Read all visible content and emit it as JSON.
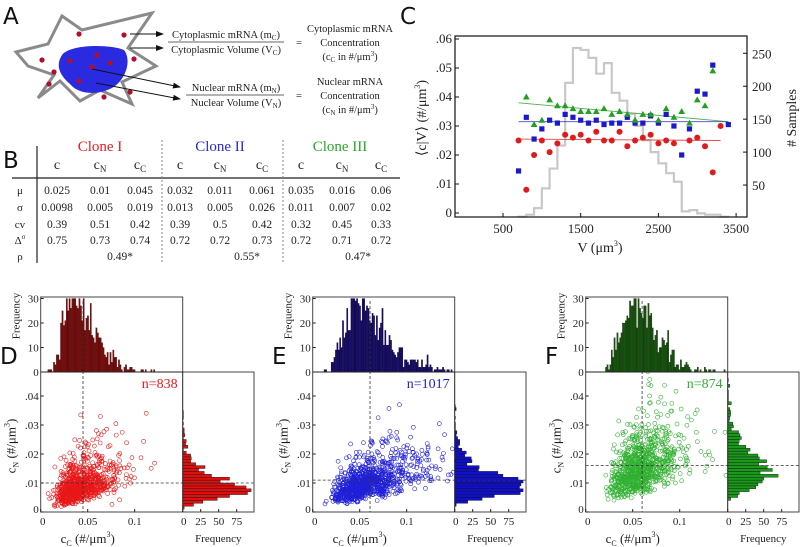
{
  "panel_labels": {
    "a": "A",
    "b": "B",
    "c": "C",
    "d": "D",
    "e": "E",
    "f": "F"
  },
  "panel_a": {
    "cyto_num": {
      "text": "Cytoplasmic mRNA (m",
      "sub": "C",
      "end": ")"
    },
    "cyto_den": {
      "text": "Cytoplasmic Volume (V",
      "sub": "C",
      "end": ")"
    },
    "cyto_eq": "=",
    "cyto_result": {
      "line1": "Cytoplasmic mRNA",
      "line2": "Concentration",
      "line3_pre": "(c",
      "line3_sub": "C",
      "line3_mid": " in #/μm",
      "line3_sup": "3",
      "line3_end": ")"
    },
    "nuc_num": {
      "text": "Nuclear mRNA (m",
      "sub": "N",
      "end": ")"
    },
    "nuc_den": {
      "text": "Nuclear Volume (V",
      "sub": "N",
      "end": ")"
    },
    "nuc_eq": "=",
    "nuc_result": {
      "line1": "Nuclear mRNA",
      "line2": "Concentration",
      "line3_pre": "(c",
      "line3_sub": "N",
      "line3_mid": " in #/μm",
      "line3_sup": "3",
      "line3_end": ")"
    },
    "colors": {
      "nucleus": "#2a2ae0",
      "mrna": "#b01030",
      "membrane": "#8a8a8a"
    }
  },
  "panel_b": {
    "clones": [
      {
        "name": "Clone I",
        "color": "#e0202a",
        "rho": "0.49*"
      },
      {
        "name": "Clone II",
        "color": "#2a2acc",
        "rho": "0.55*"
      },
      {
        "name": "Clone III",
        "color": "#2aa52a",
        "rho": "0.47*"
      }
    ],
    "columns": [
      {
        "base": "c",
        "sub": ""
      },
      {
        "base": "c",
        "sub": "N"
      },
      {
        "base": "c",
        "sub": "C"
      }
    ],
    "row_labels": [
      {
        "base": "μ",
        "sup": ""
      },
      {
        "base": "σ",
        "sup": ""
      },
      {
        "base": "cv",
        "sup": ""
      },
      {
        "base": "Δ",
        "sup": "σ"
      },
      {
        "base": "ρ",
        "sup": ""
      }
    ],
    "rows": [
      [
        "0.025",
        "0.01",
        "0.045",
        "0.032",
        "0.011",
        "0.061",
        "0.035",
        "0.016",
        "0.06"
      ],
      [
        "0.0098",
        "0.005",
        "0.019",
        "0.013",
        "0.005",
        "0.026",
        "0.011",
        "0.007",
        "0.02"
      ],
      [
        "0.39",
        "0.51",
        "0.42",
        "0.39",
        "0.5",
        "0.42",
        "0.32",
        "0.45",
        "0.33"
      ],
      [
        "0.75",
        "0.73",
        "0.74",
        "0.72",
        "0.72",
        "0.73",
        "0.72",
        "0.71",
        "0.72"
      ]
    ]
  },
  "chart_data": [
    {
      "panel": "C",
      "type": "scatter",
      "xlabel": {
        "text": "V (μm",
        "sup": "3",
        "end": ")"
      },
      "ylabel": {
        "text": "⟨c|V⟩ (#/μm",
        "sup": "3",
        "end": ")"
      },
      "ylabel_right": "# Samples",
      "xlim": [
        -120,
        3670
      ],
      "ylim": [
        0,
        0.061
      ],
      "ylim_right": [
        0,
        270
      ],
      "xticks": [
        {
          "v": 500,
          "label": "500"
        },
        {
          "v": 1500,
          "label": "1500"
        },
        {
          "v": 2500,
          "label": "2500"
        },
        {
          "v": 3500,
          "label": "3500"
        }
      ],
      "yticks": [
        {
          "v": 0,
          "label": "0"
        },
        {
          "v": 0.01,
          "label": ".01"
        },
        {
          "v": 0.02,
          "label": ".02"
        },
        {
          "v": 0.03,
          "label": ".03"
        },
        {
          "v": 0.04,
          "label": ".04"
        },
        {
          "v": 0.05,
          "label": ".05"
        },
        {
          "v": 0.06,
          "label": ".06"
        }
      ],
      "yticks_right": [
        {
          "v": 50,
          "label": "50"
        },
        {
          "v": 100,
          "label": "100"
        },
        {
          "v": 150,
          "label": "150"
        },
        {
          "v": 200,
          "label": "200"
        },
        {
          "v": 250,
          "label": "250"
        }
      ],
      "series": [
        {
          "color": "#e01b1b",
          "marker": "circle",
          "x": [
            700,
            800,
            900,
            1000,
            1100,
            1200,
            1300,
            1400,
            1500,
            1600,
            1700,
            1800,
            1900,
            2000,
            2100,
            2200,
            2300,
            2400,
            2500,
            2600,
            2700,
            2900,
            3000,
            3100,
            3200,
            3300
          ],
          "y": [
            0.025,
            0.008,
            0.02,
            0.025,
            0.021,
            0.024,
            0.027,
            0.026,
            0.027,
            0.025,
            0.028,
            0.025,
            0.025,
            0.028,
            0.023,
            0.025,
            0.026,
            0.027,
            0.024,
            0.025,
            0.024,
            0.025,
            0.026,
            0.023,
            0.014,
            0.03
          ],
          "fit": {
            "x": [
              700,
              3300
            ],
            "y": [
              0.0255,
              0.025
            ]
          }
        },
        {
          "color": "#1a1acc",
          "marker": "square",
          "x": [
            700,
            800,
            900,
            1000,
            1100,
            1200,
            1300,
            1400,
            1500,
            1600,
            1700,
            1800,
            1900,
            2000,
            2100,
            2200,
            2300,
            2400,
            2500,
            2600,
            2700,
            2800,
            2900,
            3000,
            3100,
            3200,
            3400
          ],
          "y": [
            0.0145,
            0.033,
            0.0255,
            0.029,
            0.032,
            0.031,
            0.034,
            0.033,
            0.032,
            0.031,
            0.032,
            0.0305,
            0.031,
            0.031,
            0.033,
            0.031,
            0.031,
            0.0335,
            0.031,
            0.034,
            0.03,
            0.02,
            0.029,
            0.042,
            0.041,
            0.051,
            0.0305
          ],
          "fit": {
            "x": [
              700,
              3400
            ],
            "y": [
              0.0315,
              0.0315
            ]
          }
        },
        {
          "color": "#22a022",
          "marker": "triangle",
          "x": [
            800,
            900,
            1000,
            1100,
            1200,
            1300,
            1400,
            1500,
            1600,
            1700,
            1800,
            1900,
            2000,
            2100,
            2200,
            2300,
            2400,
            2500,
            2600,
            2700,
            2800,
            2900,
            3000,
            3100,
            3200
          ],
          "y": [
            0.04,
            0.0305,
            0.032,
            0.039,
            0.037,
            0.037,
            0.036,
            0.035,
            0.035,
            0.035,
            0.036,
            0.034,
            0.035,
            0.034,
            0.032,
            0.034,
            0.034,
            0.032,
            0.036,
            0.033,
            0.035,
            0.031,
            0.039,
            0.037,
            0.049
          ],
          "fit": {
            "x": [
              700,
              3400
            ],
            "y": [
              0.038,
              0.0315
            ]
          }
        }
      ],
      "histogram": {
        "color": "#c8c8c8",
        "axis": "right",
        "bin_edges_start": 700,
        "bin_width": 100,
        "counts": [
          2,
          5,
          15,
          45,
          75,
          110,
          205,
          258,
          255,
          243,
          219,
          235,
          190,
          178,
          158,
          140,
          118,
          100,
          83,
          68,
          55,
          10,
          12,
          7,
          5,
          5,
          2
        ]
      }
    },
    {
      "panel": "D",
      "type": "scatter",
      "n_label": "n=838",
      "n": 838,
      "color": "#e81818",
      "hist_top_color": "#7a0c0c",
      "hist_right_color": "#e01010",
      "mean_cC": 0.045,
      "sd_cC": 0.019,
      "mean_cN": 0.01,
      "sd_cN": 0.005,
      "rho": 0.49,
      "dashed_x": 0.045,
      "dashed_y": 0.01
    },
    {
      "panel": "E",
      "type": "scatter",
      "n_label": "n=1017",
      "n": 1017,
      "color": "#2020d8",
      "hist_top_color": "#0c0c70",
      "hist_right_color": "#1010cc",
      "mean_cC": 0.061,
      "sd_cC": 0.026,
      "mean_cN": 0.011,
      "sd_cN": 0.005,
      "rho": 0.55,
      "dashed_x": 0.061,
      "dashed_y": 0.011
    },
    {
      "panel": "F",
      "type": "scatter",
      "n_label": "n=874",
      "n": 874,
      "color": "#30b030",
      "hist_top_color": "#0c5a0c",
      "hist_right_color": "#1a9a1a",
      "mean_cC": 0.06,
      "sd_cC": 0.02,
      "mean_cN": 0.016,
      "sd_cN": 0.007,
      "rho": 0.47,
      "dashed_x": 0.06,
      "dashed_y": 0.016
    }
  ],
  "marginal_axes": {
    "xlabel": {
      "text": "c",
      "sub": "C",
      "mid": " (#/μm",
      "sup": "3",
      "end": ")"
    },
    "ylabel": {
      "text": "c",
      "sub": "N",
      "mid": " (#/μm",
      "sup": "3",
      "end": ")"
    },
    "top_hist_ylabel": "Frequency",
    "right_hist_xlabel": "Frequency",
    "xticks": [
      {
        "v": 0,
        "label": "0"
      },
      {
        "v": 0.05,
        "label": "0.05"
      },
      {
        "v": 0.1,
        "label": "0.1"
      }
    ],
    "yticks": [
      {
        "v": 0,
        "label": "0"
      },
      {
        "v": 0.01,
        "label": ".01"
      },
      {
        "v": 0.02,
        "label": ".02"
      },
      {
        "v": 0.03,
        "label": ".03"
      },
      {
        "v": 0.04,
        "label": ".04"
      }
    ],
    "top_hist_ticks": [
      {
        "v": 0,
        "label": "0"
      },
      {
        "v": 10,
        "label": "10"
      },
      {
        "v": 20,
        "label": "20"
      },
      {
        "v": 30,
        "label": "30"
      }
    ],
    "right_hist_ticks": [
      {
        "v": 0,
        "label": "0"
      },
      {
        "v": 25,
        "label": "25"
      },
      {
        "v": 50,
        "label": "50"
      },
      {
        "v": 75,
        "label": "75"
      }
    ]
  }
}
